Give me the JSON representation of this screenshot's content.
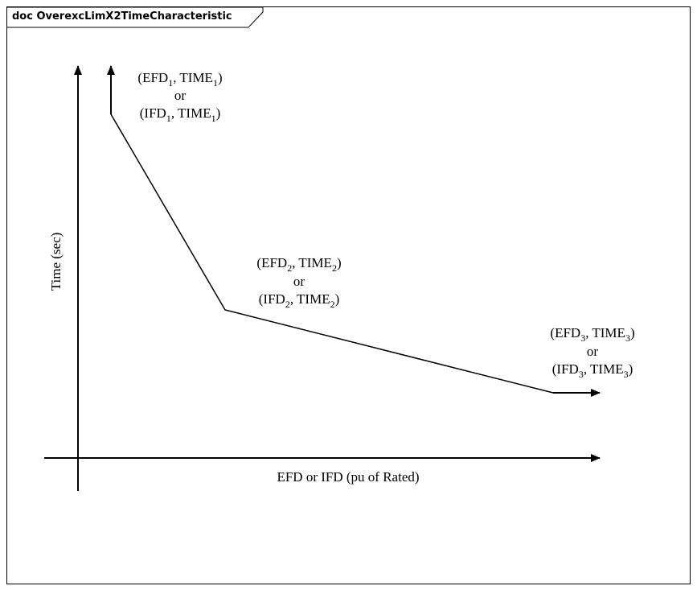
{
  "frame": {
    "title": "doc OverexcLimX2TimeCharacteristic"
  },
  "axes": {
    "y_label": "Time (sec)",
    "x_label": "EFD or IFD (pu of Rated)"
  },
  "points": [
    {
      "efd": "EFD",
      "efd_sub": "1",
      "time": "TIME",
      "time_sub": "1",
      "ifd": "IFD",
      "or": "or"
    },
    {
      "efd": "EFD",
      "efd_sub": "2",
      "time": "TIME",
      "time_sub": "2",
      "ifd": "IFD",
      "or": "or"
    },
    {
      "efd": "EFD",
      "efd_sub": "3",
      "time": "TIME",
      "time_sub": "3",
      "ifd": "IFD",
      "or": "or"
    }
  ],
  "colors": {
    "line": "#000000",
    "background": "#ffffff"
  }
}
